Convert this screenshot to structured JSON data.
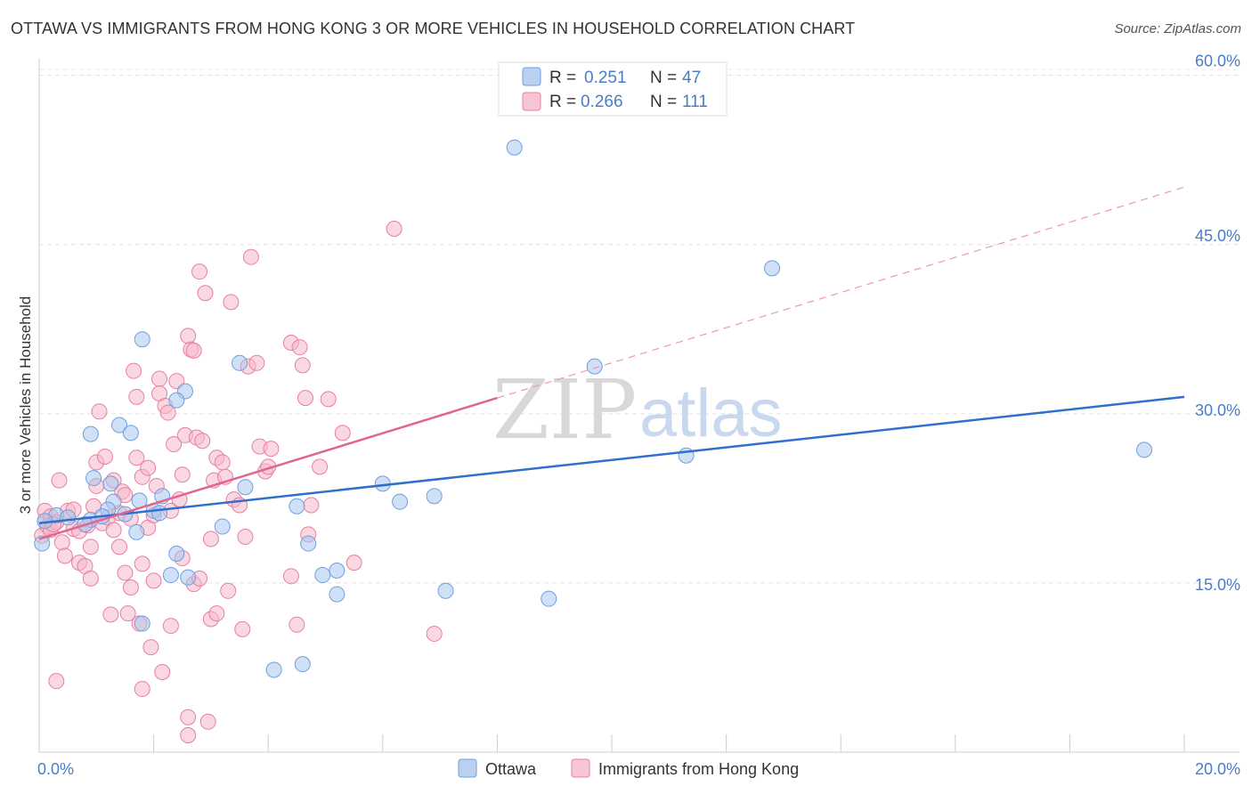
{
  "title": "OTTAWA VS IMMIGRANTS FROM HONG KONG 3 OR MORE VEHICLES IN HOUSEHOLD CORRELATION CHART",
  "source": "Source: ZipAtlas.com",
  "watermark": {
    "zip": "ZIP",
    "atlas": "atlas"
  },
  "legend": {
    "r_label": "R =",
    "n_label": "N =",
    "rows": [
      {
        "name": "Ottawa",
        "r": "0.251",
        "n": "47",
        "color": "#a9c6ef"
      },
      {
        "name": "Immigrants from Hong Kong",
        "r": "0.266",
        "n": "111",
        "color": "#f5b8cb"
      }
    ]
  },
  "chart_data": {
    "type": "scatter",
    "title": "OTTAWA VS IMMIGRANTS FROM HONG KONG 3 OR MORE VEHICLES IN HOUSEHOLD CORRELATION CHART",
    "xlabel": "",
    "ylabel": "3 or more Vehicles in Household",
    "xlim": [
      0,
      20
    ],
    "ylim": [
      0,
      61
    ],
    "x_tick_labels": [
      "0.0%",
      "20.0%"
    ],
    "y_ticks": [
      15,
      30,
      45,
      60
    ],
    "y_tick_labels": [
      "15.0%",
      "30.0%",
      "45.0%",
      "60.0%"
    ],
    "grid": true,
    "legend_position": "top-center",
    "series": [
      {
        "name": "Ottawa",
        "color": "#a9c6ef",
        "edge": "#6f9fde",
        "trend": {
          "x": [
            0,
            20
          ],
          "y": [
            20.3,
            31.5
          ],
          "color": "#2f6fce",
          "dashed_extension": false
        },
        "points": [
          [
            0.05,
            18.5
          ],
          [
            0.3,
            21
          ],
          [
            0.5,
            20.8
          ],
          [
            0.9,
            20.6
          ],
          [
            0.8,
            20.2
          ],
          [
            0.95,
            24.3
          ],
          [
            0.9,
            28.2
          ],
          [
            1.3,
            22.2
          ],
          [
            1.2,
            21.5
          ],
          [
            1.1,
            20.9
          ],
          [
            1.25,
            23.8
          ],
          [
            1.4,
            29
          ],
          [
            1.5,
            21.1
          ],
          [
            1.6,
            28.3
          ],
          [
            1.75,
            22.3
          ],
          [
            1.7,
            19.5
          ],
          [
            1.8,
            11.4
          ],
          [
            1.8,
            36.6
          ],
          [
            2.0,
            21.4
          ],
          [
            2.1,
            21.2
          ],
          [
            2.15,
            22.7
          ],
          [
            2.3,
            15.7
          ],
          [
            2.4,
            17.6
          ],
          [
            2.55,
            32
          ],
          [
            2.6,
            15.5
          ],
          [
            2.4,
            31.2
          ],
          [
            3.2,
            20
          ],
          [
            3.5,
            34.5
          ],
          [
            3.6,
            23.5
          ],
          [
            4.1,
            7.3
          ],
          [
            4.5,
            21.8
          ],
          [
            4.6,
            7.8
          ],
          [
            4.7,
            18.5
          ],
          [
            4.95,
            15.7
          ],
          [
            5.2,
            16.1
          ],
          [
            5.2,
            14
          ],
          [
            6.0,
            23.8
          ],
          [
            6.3,
            22.2
          ],
          [
            6.9,
            22.7
          ],
          [
            7.1,
            14.3
          ],
          [
            8.3,
            53.6
          ],
          [
            8.9,
            13.6
          ],
          [
            9.7,
            34.2
          ],
          [
            11.3,
            26.3
          ],
          [
            12.8,
            42.9
          ],
          [
            19.3,
            26.8
          ],
          [
            0.1,
            20.5
          ]
        ]
      },
      {
        "name": "Immigrants from Hong Kong",
        "color": "#f5b8cb",
        "edge": "#e87fa0",
        "trend": {
          "x": [
            0,
            8
          ],
          "y": [
            18.9,
            31.4
          ],
          "color": "#e0668f",
          "dashed_extension": {
            "x": [
              8,
              20
            ],
            "y": [
              31.4,
              50.1
            ]
          }
        },
        "points": [
          [
            0.05,
            19.2
          ],
          [
            0.1,
            20.5
          ],
          [
            0.1,
            21.4
          ],
          [
            0.15,
            20
          ],
          [
            0.2,
            19.7
          ],
          [
            0.2,
            20.9
          ],
          [
            0.3,
            20.4
          ],
          [
            0.3,
            6.3
          ],
          [
            0.35,
            24.1
          ],
          [
            0.4,
            18.6
          ],
          [
            0.45,
            17.4
          ],
          [
            0.5,
            21.4
          ],
          [
            0.6,
            21.5
          ],
          [
            0.6,
            19.8
          ],
          [
            0.7,
            16.8
          ],
          [
            0.7,
            19.6
          ],
          [
            0.8,
            16.5
          ],
          [
            0.85,
            20.1
          ],
          [
            0.9,
            18.2
          ],
          [
            0.95,
            21.8
          ],
          [
            0.9,
            15.4
          ],
          [
            1.0,
            25.7
          ],
          [
            1.0,
            23.6
          ],
          [
            1.05,
            30.2
          ],
          [
            1.1,
            20.3
          ],
          [
            1.15,
            26.2
          ],
          [
            1.2,
            20.8
          ],
          [
            1.25,
            12.2
          ],
          [
            1.3,
            24.1
          ],
          [
            1.3,
            19.7
          ],
          [
            1.4,
            18.2
          ],
          [
            1.4,
            21.2
          ],
          [
            1.45,
            23.1
          ],
          [
            1.5,
            15.9
          ],
          [
            1.55,
            12.3
          ],
          [
            1.5,
            22.8
          ],
          [
            1.6,
            14.6
          ],
          [
            1.6,
            20.7
          ],
          [
            1.65,
            33.8
          ],
          [
            1.7,
            26.1
          ],
          [
            1.7,
            31.5
          ],
          [
            1.75,
            11.4
          ],
          [
            1.8,
            16.7
          ],
          [
            1.8,
            24.4
          ],
          [
            1.8,
            5.6
          ],
          [
            1.9,
            19.9
          ],
          [
            1.95,
            9.3
          ],
          [
            1.9,
            25.2
          ],
          [
            2.0,
            15.2
          ],
          [
            2.0,
            21
          ],
          [
            2.05,
            23.6
          ],
          [
            2.1,
            33.1
          ],
          [
            2.1,
            31.8
          ],
          [
            2.15,
            7.1
          ],
          [
            2.2,
            30.7
          ],
          [
            2.25,
            30.1
          ],
          [
            2.3,
            21.4
          ],
          [
            2.3,
            11.2
          ],
          [
            2.35,
            27.3
          ],
          [
            2.4,
            32.9
          ],
          [
            2.45,
            22.4
          ],
          [
            2.5,
            24.6
          ],
          [
            2.5,
            17.2
          ],
          [
            2.55,
            28.1
          ],
          [
            2.6,
            3.1
          ],
          [
            2.6,
            1.5
          ],
          [
            2.6,
            36.9
          ],
          [
            2.65,
            35.7
          ],
          [
            2.7,
            35.6
          ],
          [
            2.7,
            14.9
          ],
          [
            2.75,
            27.9
          ],
          [
            2.8,
            15.4
          ],
          [
            2.8,
            42.6
          ],
          [
            2.85,
            27.6
          ],
          [
            2.9,
            40.7
          ],
          [
            2.95,
            2.7
          ],
          [
            3.0,
            11.8
          ],
          [
            3.0,
            18.9
          ],
          [
            3.05,
            24.1
          ],
          [
            3.1,
            12.3
          ],
          [
            3.1,
            26.1
          ],
          [
            3.2,
            25.7
          ],
          [
            3.25,
            24.4
          ],
          [
            3.3,
            14.3
          ],
          [
            3.35,
            39.9
          ],
          [
            3.4,
            22.4
          ],
          [
            3.5,
            21.9
          ],
          [
            3.55,
            10.9
          ],
          [
            3.6,
            19.1
          ],
          [
            3.65,
            34.2
          ],
          [
            3.7,
            43.9
          ],
          [
            3.8,
            34.5
          ],
          [
            3.85,
            27.1
          ],
          [
            3.95,
            24.9
          ],
          [
            4.0,
            25.3
          ],
          [
            4.05,
            26.9
          ],
          [
            4.4,
            15.6
          ],
          [
            4.4,
            36.3
          ],
          [
            4.5,
            11.3
          ],
          [
            4.55,
            35.9
          ],
          [
            4.6,
            34.3
          ],
          [
            4.65,
            31.4
          ],
          [
            4.7,
            19.3
          ],
          [
            4.75,
            21.9
          ],
          [
            4.9,
            25.3
          ],
          [
            5.05,
            31.3
          ],
          [
            5.3,
            28.3
          ],
          [
            5.5,
            16.8
          ],
          [
            6.2,
            46.4
          ],
          [
            6.9,
            10.5
          ],
          [
            0.25,
            20.2
          ]
        ]
      }
    ]
  }
}
